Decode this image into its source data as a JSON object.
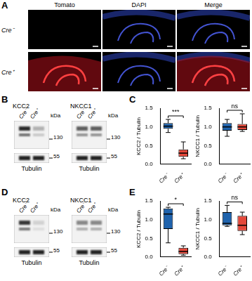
{
  "panels": {
    "A": {
      "letter": "A",
      "columns": [
        "Tomato",
        "DAPI",
        "Merge"
      ],
      "rows": [
        "Cre⁻",
        "Cre⁺"
      ]
    },
    "B": {
      "letter": "B",
      "blots": [
        {
          "protein": "KCC2",
          "lanes": [
            "Cre⁻",
            "Cre⁺"
          ],
          "unit": "kDa",
          "markers": [
            130
          ],
          "loading": {
            "protein": "Tubulin",
            "markers": [
              55
            ]
          }
        },
        {
          "protein": "NKCC1",
          "lanes": [
            "Cre⁻",
            "Cre⁺"
          ],
          "unit": "kDa",
          "markers": [
            130
          ],
          "loading": {
            "protein": "Tubulin",
            "markers": [
              55
            ]
          }
        }
      ]
    },
    "C": {
      "letter": "C"
    },
    "D": {
      "letter": "D",
      "blots": [
        {
          "protein": "KCC2",
          "lanes": [
            "Cre⁻",
            "Cre⁺"
          ],
          "unit": "kDa",
          "markers": [
            130
          ],
          "loading": {
            "protein": "Tubulin",
            "markers": [
              55
            ]
          }
        },
        {
          "protein": "NKCC1",
          "lanes": [
            "Cre⁻",
            "Cre⁺"
          ],
          "unit": "kDa",
          "markers": [
            130
          ],
          "loading": {
            "protein": "Tubulin",
            "markers": [
              55
            ]
          }
        }
      ]
    },
    "E": {
      "letter": "E"
    }
  },
  "chart_data": [
    {
      "type": "boxplot",
      "y_label": "KCC2 / Tubulin",
      "categories": [
        "Cre⁻",
        "Cre⁺"
      ],
      "colors": [
        "#1f63ad",
        "#e4483a"
      ],
      "boxes": [
        {
          "min": 0.85,
          "q1": 0.95,
          "median": 1.02,
          "q3": 1.1,
          "max": 1.2
        },
        {
          "min": 0.15,
          "q1": 0.2,
          "median": 0.3,
          "q3": 0.4,
          "max": 0.6
        }
      ],
      "ylim": [
        0,
        1.5
      ],
      "yticks": [
        {
          "value": 0,
          "label": "0.0"
        },
        {
          "value": 0.5,
          "label": "0.5"
        },
        {
          "value": 1,
          "label": "1.0"
        },
        {
          "value": 1.5,
          "label": "1.5"
        }
      ],
      "grid": false,
      "annotations": [
        "***"
      ]
    },
    {
      "type": "boxplot",
      "y_label": "NKCC1 / Tubulin",
      "categories": [
        "Cre⁻",
        "Cre⁺"
      ],
      "colors": [
        "#1f63ad",
        "#e4483a"
      ],
      "boxes": [
        {
          "min": 0.75,
          "q1": 0.9,
          "median": 1.0,
          "q3": 1.1,
          "max": 1.2
        },
        {
          "min": 0.88,
          "q1": 0.92,
          "median": 1.0,
          "q3": 1.08,
          "max": 1.35
        }
      ],
      "ylim": [
        0,
        1.5
      ],
      "yticks": [
        {
          "value": 0,
          "label": "0.0"
        },
        {
          "value": 0.5,
          "label": "0.5"
        },
        {
          "value": 1,
          "label": "1.0"
        },
        {
          "value": 1.5,
          "label": "1.5"
        }
      ],
      "grid": false,
      "annotations": [
        "ns"
      ]
    },
    {
      "type": "boxplot",
      "y_label": "KCC2 / Tubulin",
      "categories": [
        "Cre⁻",
        "Cre⁺"
      ],
      "colors": [
        "#1f63ad",
        "#e4483a"
      ],
      "boxes": [
        {
          "min": 0.38,
          "q1": 0.75,
          "median": 1.15,
          "q3": 1.3,
          "max": 1.33
        },
        {
          "min": 0.05,
          "q1": 0.08,
          "median": 0.15,
          "q3": 0.25,
          "max": 0.3
        }
      ],
      "ylim": [
        0,
        1.5
      ],
      "yticks": [
        {
          "value": 0,
          "label": "0.0"
        },
        {
          "value": 0.5,
          "label": "0.5"
        },
        {
          "value": 1,
          "label": "1.0"
        },
        {
          "value": 1.5,
          "label": "1.5"
        }
      ],
      "grid": false,
      "annotations": [
        "*"
      ]
    },
    {
      "type": "boxplot",
      "y_label": "NKCC1 / Tubulin",
      "categories": [
        "Cre⁻",
        "Cre⁺"
      ],
      "colors": [
        "#1f63ad",
        "#e4483a"
      ],
      "boxes": [
        {
          "min": 0.82,
          "q1": 0.85,
          "median": 0.9,
          "q3": 1.2,
          "max": 1.38
        },
        {
          "min": 0.6,
          "q1": 0.7,
          "median": 0.85,
          "q3": 1.1,
          "max": 1.2
        }
      ],
      "ylim": [
        0,
        1.5
      ],
      "yticks": [
        {
          "value": 0,
          "label": "0.0"
        },
        {
          "value": 0.5,
          "label": "0.5"
        },
        {
          "value": 1,
          "label": "1.0"
        },
        {
          "value": 1.5,
          "label": "1.5"
        }
      ],
      "grid": false,
      "annotations": [
        "ns"
      ]
    }
  ]
}
